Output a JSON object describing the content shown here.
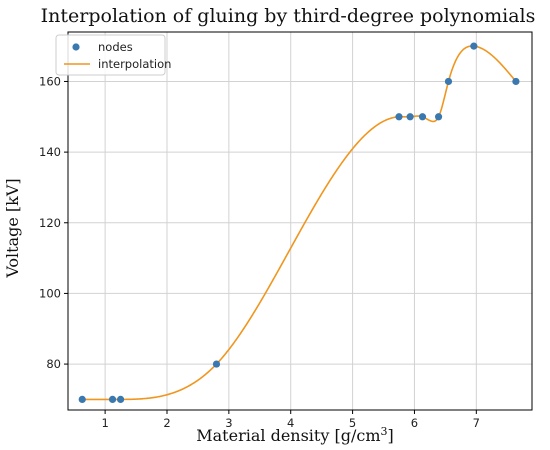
{
  "chart_data": {
    "type": "line",
    "title": "Interpolation of gluing by third-degree polynomials",
    "xlabel": "Material density [g/cm3]",
    "xlabel_base": "Material density [g/cm",
    "xlabel_sup": "3",
    "xlabel_end": "]",
    "ylabel": "Voltage  [kV]",
    "xlim": [
      0.4,
      7.9
    ],
    "ylim": [
      67,
      174
    ],
    "xticks": [
      1,
      2,
      3,
      4,
      5,
      6,
      7
    ],
    "yticks": [
      80,
      100,
      120,
      140,
      160
    ],
    "grid": true,
    "legend_position": "top-left",
    "colors": {
      "nodes": "#3a78b0",
      "interpolation": "#f0961e",
      "grid": "#d2d2d2",
      "axes": "#000000"
    },
    "series": [
      {
        "name": "nodes",
        "kind": "scatter",
        "x": [
          0.63,
          1.12,
          1.25,
          2.8,
          5.75,
          5.93,
          6.13,
          6.39,
          6.55,
          6.96,
          7.64
        ],
        "y": [
          70,
          70,
          70,
          80,
          150,
          150,
          150,
          150,
          160,
          170,
          160
        ]
      },
      {
        "name": "interpolation",
        "kind": "line",
        "x": [
          0.63,
          1.12,
          1.25,
          2.8,
          5.75,
          5.93,
          6.13,
          6.29,
          6.39,
          6.55,
          6.96,
          7.64
        ],
        "y": [
          70,
          70,
          70,
          80,
          150,
          150,
          150,
          148.7,
          150,
          160,
          170,
          160
        ]
      }
    ]
  }
}
